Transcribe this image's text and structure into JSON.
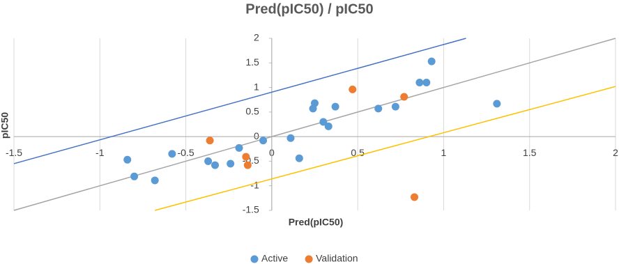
{
  "chart_data": {
    "type": "scatter",
    "title": "Pred(pIC50) / pIC50",
    "x_label": "Pred(pIC50)",
    "y_label": "pIC50",
    "xlim": [
      -1.5,
      2
    ],
    "ylim": [
      -1.5,
      2
    ],
    "xticks": [
      -1.5,
      -1,
      -0.5,
      0,
      0.5,
      1,
      1.5,
      2
    ],
    "yticks": [
      -1.5,
      -1,
      -0.5,
      0,
      0.5,
      1,
      1.5,
      2
    ],
    "grid": true,
    "legend": "bottom",
    "series": [
      {
        "name": "Active",
        "color": "#5b9bd5",
        "x": [
          -0.84,
          -0.8,
          -0.68,
          -0.58,
          -0.37,
          -0.33,
          -0.24,
          -0.19,
          -0.05,
          0.11,
          0.16,
          0.24,
          0.25,
          0.3,
          0.33,
          0.37,
          0.62,
          0.72,
          0.86,
          0.9,
          0.93,
          1.31
        ],
        "values": [
          -0.47,
          -0.81,
          -0.89,
          -0.35,
          -0.5,
          -0.58,
          -0.55,
          -0.23,
          -0.08,
          -0.03,
          -0.44,
          0.57,
          0.68,
          0.3,
          0.21,
          0.61,
          0.57,
          0.61,
          1.1,
          1.1,
          1.53,
          0.67
        ]
      },
      {
        "name": "Validation",
        "color": "#ed7d31",
        "x": [
          -0.36,
          -0.15,
          -0.14,
          0.47,
          0.77,
          0.83
        ],
        "values": [
          -0.08,
          -0.41,
          -0.58,
          0.96,
          0.81,
          -1.23
        ]
      }
    ],
    "reference_lines": [
      {
        "color": "#4472c4",
        "x": [
          -1.5,
          1.13
        ],
        "values": [
          -0.55,
          2
        ]
      },
      {
        "color": "#a5a5a5",
        "x": [
          -1.5,
          2
        ],
        "values": [
          -1.5,
          2
        ]
      },
      {
        "color": "#ffc000",
        "x": [
          -0.68,
          2
        ],
        "values": [
          -1.5,
          1.02
        ]
      }
    ]
  }
}
